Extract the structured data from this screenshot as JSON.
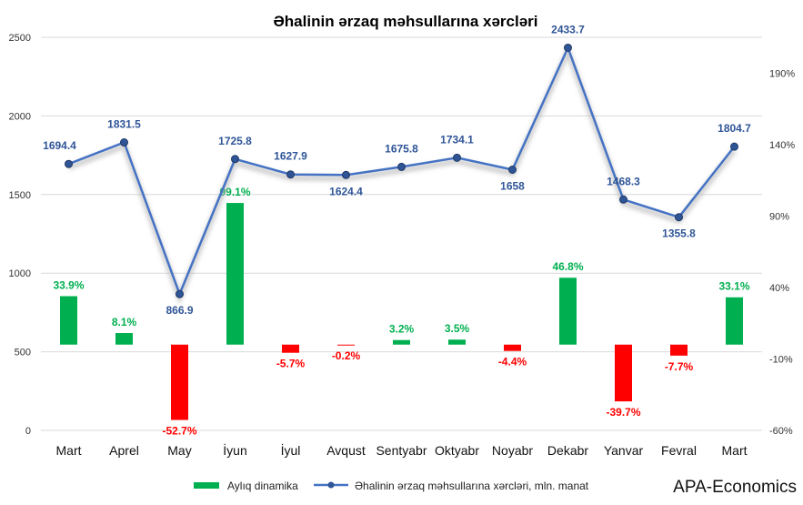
{
  "chart_data": {
    "type": "bar+line",
    "title": "Əhalinin ərzaq məhsullarına xərcləri",
    "categories": [
      "Mart",
      "Aprel",
      "May",
      "İyun",
      "İyul",
      "Avqust",
      "Sentyabr",
      "Oktyabr",
      "Noyabr",
      "Dekabr",
      "Yanvar",
      "Fevral",
      "Mart"
    ],
    "line_series": {
      "name": "Əhalinin ərzaq məhsullarına xərcləri, mln. manat",
      "axis": "left",
      "values": [
        1694.4,
        1831.5,
        866.9,
        1725.8,
        1627.9,
        1624.4,
        1675.8,
        1734.1,
        1658,
        2433.7,
        1468.3,
        1355.8,
        1804.7
      ],
      "labels": [
        "1694.4",
        "1831.5",
        "866.9",
        "1725.8",
        "1627.9",
        "1624.4",
        "1675.8",
        "1734.1",
        "1658",
        "2433.7",
        "1468.3",
        "1355.8",
        "1804.7"
      ],
      "color": "#4472c4"
    },
    "bar_series": {
      "name": "Aylıq dinamika",
      "axis": "right",
      "values": [
        33.9,
        8.1,
        -52.7,
        99.1,
        -5.7,
        -0.2,
        3.2,
        3.5,
        -4.4,
        46.8,
        -39.7,
        -7.7,
        33.1
      ],
      "labels": [
        "33.9%",
        "8.1%",
        "-52.7%",
        "99.1%",
        "-5.7%",
        "-0.2%",
        "3.2%",
        "3.5%",
        "-4.4%",
        "46.8%",
        "-39.7%",
        "-7.7%",
        "33.1%"
      ],
      "positive_color": "#00b050",
      "negative_color": "#ff0000"
    },
    "left_axis": {
      "min": 0,
      "max": 2500,
      "ticks": [
        "0",
        "500",
        "1000",
        "1500",
        "2000",
        "2500"
      ]
    },
    "right_axis": {
      "min": -60,
      "max": 215,
      "ticks": [
        "-60%",
        "-10%",
        "40%",
        "90%",
        "140%",
        "190%"
      ],
      "tick_values": [
        -60,
        -10,
        40,
        90,
        140,
        190
      ]
    },
    "grid": true,
    "legend_position": "bottom"
  },
  "brand": "APA-Economics"
}
